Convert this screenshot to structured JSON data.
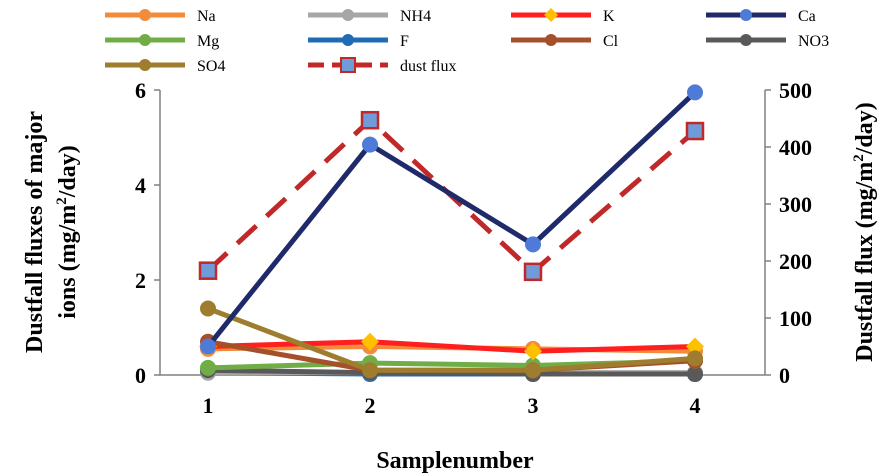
{
  "chart_data": {
    "type": "line",
    "x": [
      1,
      2,
      3,
      4
    ],
    "xlabel": "Samplenumber",
    "ylabel_left_lines": [
      "Dustfall fluxes of major",
      "ions (mg/m",
      "2",
      "/day)"
    ],
    "ylabel_right_parts": [
      "Dustfall flux (mg/m",
      "2",
      "/day)"
    ],
    "ylim_left": [
      0,
      6
    ],
    "ylim_right": [
      0,
      500
    ],
    "yticks_left": [
      0,
      2,
      4,
      6
    ],
    "yticks_right": [
      0,
      100,
      200,
      300,
      400,
      500
    ],
    "grid": false,
    "legend_position": "top",
    "series": [
      {
        "name": "Na",
        "axis": "left",
        "color": "#F28C3A",
        "marker": "circle",
        "values": [
          0.55,
          0.6,
          0.55,
          0.5
        ]
      },
      {
        "name": "NH4",
        "axis": "left",
        "color": "#A6A6A6",
        "marker": "circle",
        "values": [
          0.05,
          0.05,
          0.05,
          0.05
        ]
      },
      {
        "name": "K",
        "axis": "left",
        "color": "#FF1F1F",
        "marker": "diamond",
        "markerColor": "#FFC000",
        "values": [
          0.6,
          0.7,
          0.5,
          0.6
        ]
      },
      {
        "name": "Ca",
        "axis": "left",
        "color": "#1F2A6B",
        "marker": "circle",
        "markerColor": "#4F7BD8",
        "values": [
          0.6,
          4.85,
          2.75,
          5.95
        ]
      },
      {
        "name": "Mg",
        "axis": "left",
        "color": "#70AD47",
        "marker": "circle",
        "values": [
          0.15,
          0.25,
          0.2,
          0.3
        ]
      },
      {
        "name": "F",
        "axis": "left",
        "color": "#1F6BB4",
        "marker": "circle",
        "values": [
          0.05,
          0.02,
          0.02,
          0.02
        ]
      },
      {
        "name": "Cl",
        "axis": "left",
        "color": "#A5502A",
        "marker": "circle",
        "values": [
          0.7,
          0.1,
          0.1,
          0.3
        ]
      },
      {
        "name": "NO3",
        "axis": "left",
        "color": "#595959",
        "marker": "circle",
        "values": [
          0.1,
          0.05,
          0.02,
          0.02
        ]
      },
      {
        "name": "SO4",
        "axis": "left",
        "color": "#9E7E2E",
        "marker": "circle",
        "values": [
          1.4,
          0.1,
          0.1,
          0.35
        ]
      },
      {
        "name": "dust flux",
        "axis": "right",
        "color": "#C0282A",
        "marker": "square",
        "markerColor": "#6F9CD8",
        "dashed": true,
        "values": [
          183,
          447,
          181,
          428
        ]
      }
    ]
  }
}
